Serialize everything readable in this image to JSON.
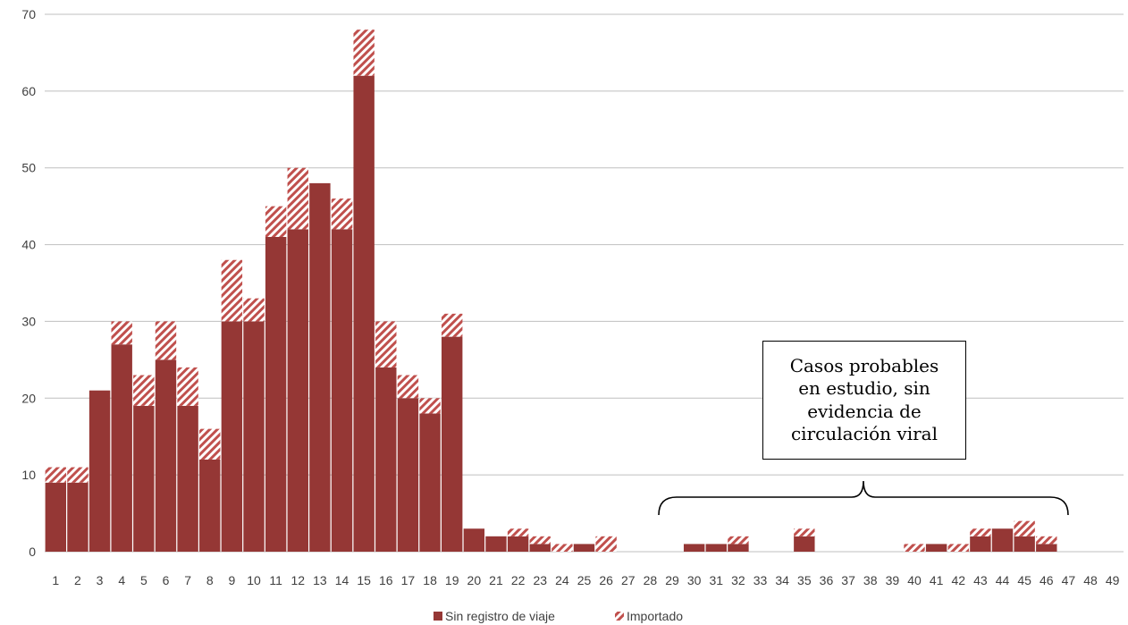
{
  "chart_data": {
    "type": "bar",
    "stacked": true,
    "title": "",
    "xlabel": "",
    "ylabel": "",
    "ylim": [
      0,
      70
    ],
    "yticks": [
      0,
      10,
      20,
      30,
      40,
      50,
      60,
      70
    ],
    "grid": true,
    "legend": "bottom-center",
    "categories": [
      "1",
      "2",
      "3",
      "4",
      "5",
      "6",
      "7",
      "8",
      "9",
      "10",
      "11",
      "12",
      "13",
      "14",
      "15",
      "16",
      "17",
      "18",
      "19",
      "20",
      "21",
      "22",
      "23",
      "24",
      "25",
      "26",
      "27",
      "28",
      "29",
      "30",
      "31",
      "32",
      "33",
      "34",
      "35",
      "36",
      "37",
      "38",
      "39",
      "40",
      "41",
      "42",
      "43",
      "44",
      "45",
      "46",
      "47",
      "48",
      "49"
    ],
    "series": [
      {
        "name": "Sin registro de viaje",
        "color": "#953735",
        "pattern": "solid",
        "values": [
          9,
          9,
          21,
          27,
          19,
          25,
          19,
          12,
          30,
          30,
          41,
          42,
          48,
          42,
          62,
          24,
          20,
          18,
          28,
          3,
          2,
          2,
          1,
          0,
          1,
          0,
          0,
          0,
          0,
          1,
          1,
          1,
          0,
          0,
          2,
          0,
          0,
          0,
          0,
          0,
          1,
          0,
          2,
          3,
          2,
          1,
          0,
          0,
          0
        ]
      },
      {
        "name": "Importado",
        "color": "#953735",
        "pattern": "diagonal-stripes",
        "values": [
          2,
          2,
          0,
          3,
          4,
          5,
          5,
          4,
          8,
          3,
          4,
          8,
          0,
          4,
          6,
          6,
          3,
          2,
          3,
          0,
          0,
          1,
          1,
          1,
          0,
          2,
          0,
          0,
          0,
          0,
          0,
          1,
          0,
          0,
          1,
          0,
          0,
          0,
          0,
          1,
          0,
          1,
          1,
          0,
          2,
          1,
          0,
          0,
          0
        ]
      }
    ],
    "annotations": [
      {
        "text_lines": [
          "Casos probables",
          "en estudio, sin",
          "evidencia de",
          "circulación viral"
        ],
        "span": [
          "29",
          "47"
        ]
      }
    ]
  }
}
